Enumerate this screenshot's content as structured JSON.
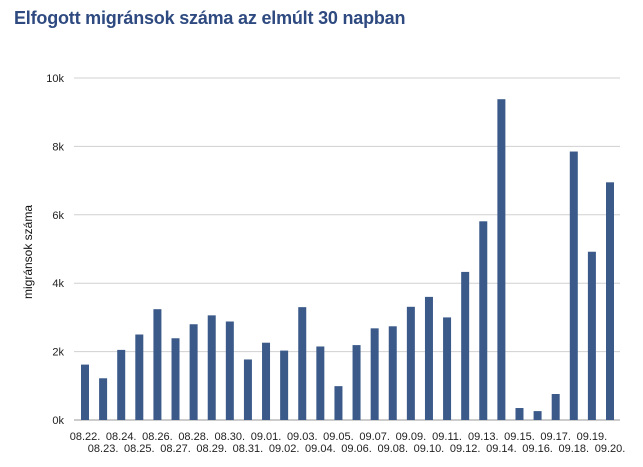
{
  "chart_data": {
    "type": "bar",
    "title": "Elfogott migránsok száma az elmúlt 30 napban",
    "ylabel": "migránsok száma",
    "xlabel": "",
    "ylim": [
      0,
      10000
    ],
    "yticks": [
      0,
      2000,
      4000,
      6000,
      8000,
      10000
    ],
    "ytick_labels": [
      "0k",
      "2k",
      "4k",
      "6k",
      "8k",
      "10k"
    ],
    "grid": true,
    "bar_color": "#3b5a8a",
    "grid_color": "#d0d0d0",
    "title_color": "#2e4a80",
    "categories": [
      "08.22.",
      "08.23.",
      "08.24.",
      "08.25.",
      "08.26.",
      "08.27.",
      "08.28.",
      "08.29.",
      "08.30.",
      "08.31.",
      "09.01.",
      "09.02.",
      "09.03.",
      "09.04.",
      "09.05.",
      "09.06.",
      "09.07.",
      "09.08.",
      "09.09.",
      "09.10.",
      "09.11.",
      "09.12.",
      "09.13.",
      "09.14.",
      "09.15.",
      "09.16.",
      "09.17.",
      "09.18.",
      "09.19.",
      "09.20."
    ],
    "values": [
      1620,
      1220,
      2050,
      2500,
      3240,
      2390,
      2800,
      3060,
      2880,
      1770,
      2260,
      2030,
      3300,
      2150,
      990,
      2190,
      2680,
      2740,
      3310,
      3600,
      3000,
      4330,
      5810,
      9380,
      350,
      260,
      760,
      7850,
      4920,
      6950
    ]
  }
}
